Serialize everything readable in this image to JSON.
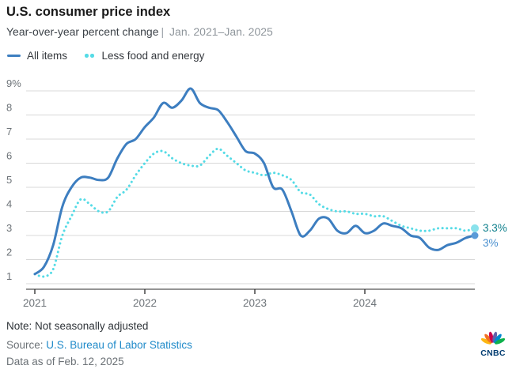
{
  "header": {
    "title": "U.S. consumer price index",
    "subtitle_main": "Year-over-year percent change",
    "subtitle_sep": "|",
    "subtitle_range": "Jan. 2021–Jan. 2025"
  },
  "legend": [
    {
      "label": "All items",
      "color": "#3d7ec0",
      "style": "solid"
    },
    {
      "label": "Less food and energy",
      "color": "#55dbe6",
      "style": "dotted"
    }
  ],
  "chart_data": {
    "type": "line",
    "title": "U.S. consumer price index",
    "subtitle": "Year-over-year percent change | Jan. 2021–Jan. 2025",
    "x_interval": "monthly",
    "x_start": "2021-01",
    "x_end": "2025-01",
    "x_tick_labels": [
      "2021",
      "2022",
      "2023",
      "2024"
    ],
    "xlabel": "",
    "ylabel": "percent",
    "ylim": [
      1,
      9
    ],
    "y_ticks": [
      1,
      2,
      3,
      4,
      5,
      6,
      7,
      8,
      9
    ],
    "y_top_tick_label": "9%",
    "grid": "horizontal",
    "legend_position": "top-left",
    "series": [
      {
        "name": "All items",
        "color": "#3d7ec0",
        "line_style": "solid",
        "end_label": "3%",
        "end_label_color": "#4a90cf",
        "end_dot_color": "#5b9bd8",
        "values": [
          1.4,
          1.7,
          2.6,
          4.2,
          5.0,
          5.4,
          5.4,
          5.3,
          5.4,
          6.2,
          6.8,
          7.0,
          7.5,
          7.9,
          8.5,
          8.3,
          8.6,
          9.1,
          8.5,
          8.3,
          8.2,
          7.7,
          7.1,
          6.5,
          6.4,
          6.0,
          5.0,
          4.9,
          4.0,
          3.0,
          3.2,
          3.7,
          3.7,
          3.2,
          3.1,
          3.4,
          3.1,
          3.2,
          3.5,
          3.4,
          3.3,
          3.0,
          2.9,
          2.5,
          2.4,
          2.6,
          2.7,
          2.9,
          3.0
        ]
      },
      {
        "name": "Less food and energy",
        "color": "#55dbe6",
        "line_style": "dotted",
        "end_label": "3.3%",
        "end_label_color": "#0d7f8c",
        "end_dot_color": "#8ae2ec",
        "values": [
          1.4,
          1.3,
          1.6,
          3.0,
          3.8,
          4.5,
          4.3,
          4.0,
          4.0,
          4.6,
          4.9,
          5.5,
          6.0,
          6.4,
          6.5,
          6.2,
          6.0,
          5.9,
          5.9,
          6.3,
          6.6,
          6.3,
          6.0,
          5.7,
          5.6,
          5.5,
          5.6,
          5.5,
          5.3,
          4.8,
          4.7,
          4.3,
          4.1,
          4.0,
          4.0,
          3.9,
          3.9,
          3.8,
          3.8,
          3.6,
          3.4,
          3.3,
          3.2,
          3.2,
          3.3,
          3.3,
          3.3,
          3.2,
          3.3
        ]
      }
    ],
    "colors": {
      "gridline": "#d8d8d8",
      "axis": "#2a2a2a",
      "tick_label": "#6d7378"
    }
  },
  "footer": {
    "note": "Note: Not seasonally adjusted",
    "source_prefix": "Source:",
    "source_link": "U.S. Bureau of Labor Statistics",
    "link_color": "#1f8ac9",
    "data_as_of": "Data as of Feb. 12, 2025"
  },
  "branding": {
    "logo_text": "CNBC",
    "logo_text_color": "#003c71",
    "peacock_colors": [
      "#FCB711",
      "#F37021",
      "#CC004C",
      "#6460AA",
      "#0089D0",
      "#0DB14B"
    ]
  }
}
